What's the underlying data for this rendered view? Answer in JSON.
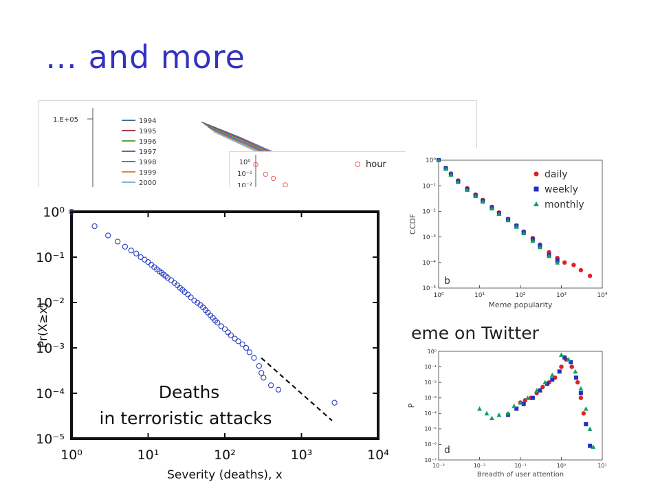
{
  "slide": {
    "title": "… and more"
  },
  "chart_data": [
    {
      "id": "yearly-curves",
      "type": "line",
      "ytick_top": "1.E+05",
      "series": [
        {
          "name": "1994",
          "color": "#4a6fa5",
          "values": [
            100000,
            82000,
            66000,
            52000,
            40000
          ]
        },
        {
          "name": "1995",
          "color": "#b03a48",
          "values": [
            98000,
            80000,
            64000,
            50000,
            38500
          ]
        },
        {
          "name": "1996",
          "color": "#6aa04a",
          "values": [
            96000,
            78000,
            62000,
            48500,
            37000
          ]
        },
        {
          "name": "1997",
          "color": "#7b5aa6",
          "values": [
            94000,
            76000,
            60500,
            47000,
            35500
          ]
        },
        {
          "name": "1998",
          "color": "#3d8aa0",
          "values": [
            92000,
            74000,
            59000,
            45500,
            34000
          ]
        },
        {
          "name": "1999",
          "color": "#e08a2e",
          "values": [
            90000,
            72000,
            57500,
            44000,
            32500
          ]
        },
        {
          "name": "2000",
          "color": "#7fb2e0",
          "values": [
            88000,
            70000,
            56000,
            42500,
            31000
          ]
        }
      ]
    },
    {
      "id": "hour-inset",
      "type": "scatter",
      "ytick_labels": [
        "10⁰",
        "10⁻¹",
        "10⁻²"
      ],
      "legend": "hour",
      "points": [
        [
          1,
          0.6
        ],
        [
          1.3,
          0.12
        ],
        [
          1.6,
          0.06
        ],
        [
          2.2,
          0.02
        ]
      ]
    },
    {
      "id": "meme-popularity",
      "type": "scatter",
      "panel_letter": "b",
      "xlabel": "Meme popularity",
      "ylabel": "CCDF",
      "xscale": "log",
      "yscale": "log",
      "xlim": [
        1,
        10000
      ],
      "ylim": [
        1e-05,
        1
      ],
      "xtick_labels": [
        "10⁰",
        "10¹",
        "10²",
        "10³",
        "10⁴"
      ],
      "ytick_labels": [
        "10⁰",
        "10⁻¹",
        "10⁻²",
        "10⁻³",
        "10⁻⁴",
        "10⁻⁵"
      ],
      "legend_position": "top-right",
      "series": [
        {
          "name": "daily",
          "color": "#e02020",
          "points": [
            [
              1,
              1
            ],
            [
              1.5,
              0.5
            ],
            [
              2,
              0.3
            ],
            [
              3,
              0.16
            ],
            [
              5,
              0.08
            ],
            [
              8,
              0.045
            ],
            [
              12,
              0.028
            ],
            [
              20,
              0.015
            ],
            [
              30,
              0.009
            ],
            [
              50,
              0.005
            ],
            [
              80,
              0.0028
            ],
            [
              120,
              0.0016
            ],
            [
              200,
              0.0009
            ],
            [
              300,
              0.0005
            ],
            [
              500,
              0.00025
            ],
            [
              800,
              0.00015
            ],
            [
              1200,
              0.0001
            ],
            [
              2000,
              8e-05
            ],
            [
              3000,
              5e-05
            ],
            [
              5000,
              3e-05
            ]
          ]
        },
        {
          "name": "weekly",
          "color": "#2030c0",
          "points": [
            [
              1,
              1
            ],
            [
              1.5,
              0.48
            ],
            [
              2,
              0.28
            ],
            [
              3,
              0.15
            ],
            [
              5,
              0.075
            ],
            [
              8,
              0.042
            ],
            [
              12,
              0.026
            ],
            [
              20,
              0.014
            ],
            [
              30,
              0.0085
            ],
            [
              50,
              0.0048
            ],
            [
              80,
              0.0027
            ],
            [
              120,
              0.0015
            ],
            [
              200,
              0.0008
            ],
            [
              300,
              0.00045
            ],
            [
              500,
              0.0002
            ],
            [
              800,
              0.00012
            ]
          ]
        },
        {
          "name": "monthly",
          "color": "#10a060",
          "points": [
            [
              1,
              1
            ],
            [
              1.5,
              0.46
            ],
            [
              2,
              0.27
            ],
            [
              3,
              0.14
            ],
            [
              5,
              0.07
            ],
            [
              8,
              0.04
            ],
            [
              12,
              0.024
            ],
            [
              20,
              0.013
            ],
            [
              30,
              0.008
            ],
            [
              50,
              0.0045
            ],
            [
              80,
              0.0025
            ],
            [
              120,
              0.0014
            ],
            [
              200,
              0.0007
            ],
            [
              300,
              0.0004
            ],
            [
              500,
              0.00018
            ],
            [
              800,
              0.0001
            ]
          ]
        }
      ]
    },
    {
      "id": "user-attention",
      "type": "scatter",
      "panel_letter": "d",
      "xlabel": "Breadth of user attention",
      "ylabel": "P",
      "xscale": "log",
      "yscale": "log",
      "xlim": [
        0.001,
        10
      ],
      "ylim": [
        1e-07,
        1
      ],
      "xtick_labels": [
        "10⁻³",
        "10⁻²",
        "10⁻¹",
        "10⁰",
        "10¹"
      ],
      "ytick_labels": [
        "10⁰",
        "10⁻¹",
        "10⁻²",
        "10⁻³",
        "10⁻⁴",
        "10⁻⁵",
        "10⁻⁶",
        "10⁻⁷"
      ],
      "series": [
        {
          "name": "daily",
          "color": "#e02020",
          "points": [
            [
              0.1,
              0.0005
            ],
            [
              0.13,
              0.0007
            ],
            [
              0.18,
              0.001
            ],
            [
              0.25,
              0.002
            ],
            [
              0.35,
              0.005
            ],
            [
              0.5,
              0.01
            ],
            [
              0.7,
              0.02
            ],
            [
              1,
              0.1
            ],
            [
              1.3,
              0.3
            ],
            [
              1.8,
              0.1
            ],
            [
              2.5,
              0.01
            ],
            [
              3,
              0.001
            ],
            [
              3.5,
              0.0001
            ]
          ]
        },
        {
          "name": "weekly",
          "color": "#2030c0",
          "points": [
            [
              0.05,
              8e-05
            ],
            [
              0.08,
              0.0002
            ],
            [
              0.12,
              0.0004
            ],
            [
              0.2,
              0.001
            ],
            [
              0.3,
              0.003
            ],
            [
              0.45,
              0.008
            ],
            [
              0.6,
              0.015
            ],
            [
              0.9,
              0.05
            ],
            [
              1.2,
              0.4
            ],
            [
              1.7,
              0.2
            ],
            [
              2.3,
              0.02
            ],
            [
              3,
              0.002
            ],
            [
              4,
              2e-05
            ],
            [
              5,
              8e-07
            ]
          ]
        },
        {
          "name": "monthly",
          "color": "#10a060",
          "points": [
            [
              0.01,
              0.0002
            ],
            [
              0.015,
              0.0001
            ],
            [
              0.02,
              5e-05
            ],
            [
              0.03,
              8e-05
            ],
            [
              0.05,
              0.0001
            ],
            [
              0.07,
              0.0003
            ],
            [
              0.1,
              0.0005
            ],
            [
              0.15,
              0.001
            ],
            [
              0.25,
              0.003
            ],
            [
              0.4,
              0.01
            ],
            [
              0.6,
              0.03
            ],
            [
              1,
              0.6
            ],
            [
              1.5,
              0.3
            ],
            [
              2.2,
              0.05
            ],
            [
              3,
              0.004
            ],
            [
              4,
              0.0002
            ],
            [
              5,
              1e-05
            ],
            [
              6,
              7e-07
            ]
          ]
        }
      ]
    },
    {
      "id": "terror-deaths",
      "type": "scatter",
      "xlabel": "Severity (deaths), x",
      "ylabel": "Pr(X≥x)",
      "xscale": "log",
      "yscale": "log",
      "xlim": [
        1,
        10000
      ],
      "ylim": [
        1e-05,
        1
      ],
      "xtick_labels": [
        "10⁰",
        "10¹",
        "10²",
        "10³",
        "10⁴"
      ],
      "ytick_labels": [
        "10⁰",
        "10⁻¹",
        "10⁻²",
        "10⁻³",
        "10⁻⁴",
        "10⁻⁵"
      ],
      "annotation": [
        "Deaths",
        "in terroristic attacks"
      ],
      "points": [
        [
          1,
          1
        ],
        [
          2,
          0.48
        ],
        [
          3,
          0.3
        ],
        [
          4,
          0.22
        ],
        [
          5,
          0.17
        ],
        [
          6,
          0.14
        ],
        [
          7,
          0.12
        ],
        [
          8,
          0.1
        ],
        [
          9,
          0.088
        ],
        [
          10,
          0.078
        ],
        [
          11,
          0.068
        ],
        [
          12,
          0.06
        ],
        [
          13,
          0.054
        ],
        [
          14,
          0.049
        ],
        [
          15,
          0.045
        ],
        [
          16,
          0.041
        ],
        [
          17,
          0.038
        ],
        [
          18,
          0.035
        ],
        [
          20,
          0.031
        ],
        [
          22,
          0.027
        ],
        [
          24,
          0.024
        ],
        [
          26,
          0.021
        ],
        [
          28,
          0.019
        ],
        [
          30,
          0.017
        ],
        [
          33,
          0.015
        ],
        [
          36,
          0.013
        ],
        [
          40,
          0.011
        ],
        [
          44,
          0.0098
        ],
        [
          48,
          0.0088
        ],
        [
          52,
          0.0078
        ],
        [
          56,
          0.0068
        ],
        [
          60,
          0.006
        ],
        [
          65,
          0.0052
        ],
        [
          70,
          0.0046
        ],
        [
          75,
          0.004
        ],
        [
          80,
          0.0036
        ],
        [
          90,
          0.003
        ],
        [
          100,
          0.0026
        ],
        [
          110,
          0.0022
        ],
        [
          120,
          0.0019
        ],
        [
          135,
          0.0016
        ],
        [
          150,
          0.0014
        ],
        [
          170,
          0.0012
        ],
        [
          190,
          0.001
        ],
        [
          210,
          0.0008
        ],
        [
          240,
          0.0006
        ],
        [
          280,
          0.0004
        ],
        [
          300,
          0.00028
        ],
        [
          320,
          0.00022
        ],
        [
          400,
          0.00015
        ],
        [
          500,
          0.00012
        ],
        [
          2700,
          6.2e-05
        ]
      ],
      "fit_line": [
        [
          300,
          0.0006
        ],
        [
          2500,
          2.5e-05
        ]
      ]
    }
  ],
  "captions": {
    "meme": "eme on Twitter"
  }
}
